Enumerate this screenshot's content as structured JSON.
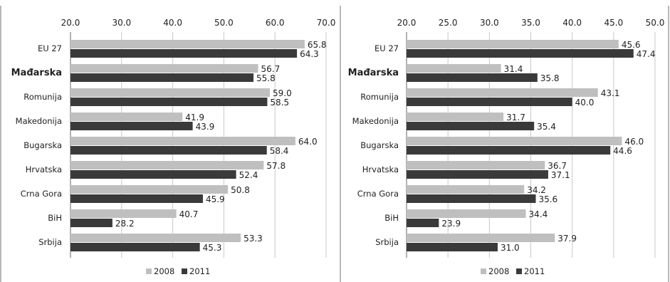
{
  "chart_data": [
    {
      "type": "bar",
      "orientation": "horizontal",
      "categories": [
        "EU 27",
        "Mađarska",
        "Romunija",
        "Makedonija",
        "Bugarska",
        "Hrvatska",
        "Crna Gora",
        "BiH",
        "Srbija"
      ],
      "bold_category": "Mađarska",
      "xlim": [
        20,
        70
      ],
      "ticks": [
        "20.0",
        "30.0",
        "40.0",
        "50.0",
        "60.0",
        "70.0"
      ],
      "grid": true,
      "legend_position": "bottom",
      "series": [
        {
          "name": "2008",
          "color": "#bfbfbf",
          "values": [
            65.8,
            56.7,
            59.0,
            41.9,
            64.0,
            57.8,
            50.8,
            40.7,
            53.3
          ]
        },
        {
          "name": "2011",
          "color": "#3a3a3a",
          "values": [
            64.3,
            55.8,
            58.5,
            43.9,
            58.4,
            52.4,
            45.9,
            28.2,
            45.3
          ]
        }
      ]
    },
    {
      "type": "bar",
      "orientation": "horizontal",
      "categories": [
        "EU 27",
        "Mađarska",
        "Romunija",
        "Makedonija",
        "Bugarska",
        "Hrvatska",
        "Crna Gora",
        "BiH",
        "Srbija"
      ],
      "bold_category": "Mađarska",
      "xlim": [
        20,
        50
      ],
      "ticks": [
        "20.0",
        "25.0",
        "30.0",
        "35.0",
        "40.0",
        "45.0",
        "50.0"
      ],
      "grid": true,
      "legend_position": "bottom",
      "series": [
        {
          "name": "2008",
          "color": "#bfbfbf",
          "values": [
            45.6,
            31.4,
            43.1,
            31.7,
            46.0,
            36.7,
            34.2,
            34.4,
            37.9
          ]
        },
        {
          "name": "2011",
          "color": "#3a3a3a",
          "values": [
            47.4,
            35.8,
            40.0,
            35.4,
            44.6,
            37.1,
            35.6,
            23.9,
            31.0
          ]
        }
      ]
    }
  ]
}
